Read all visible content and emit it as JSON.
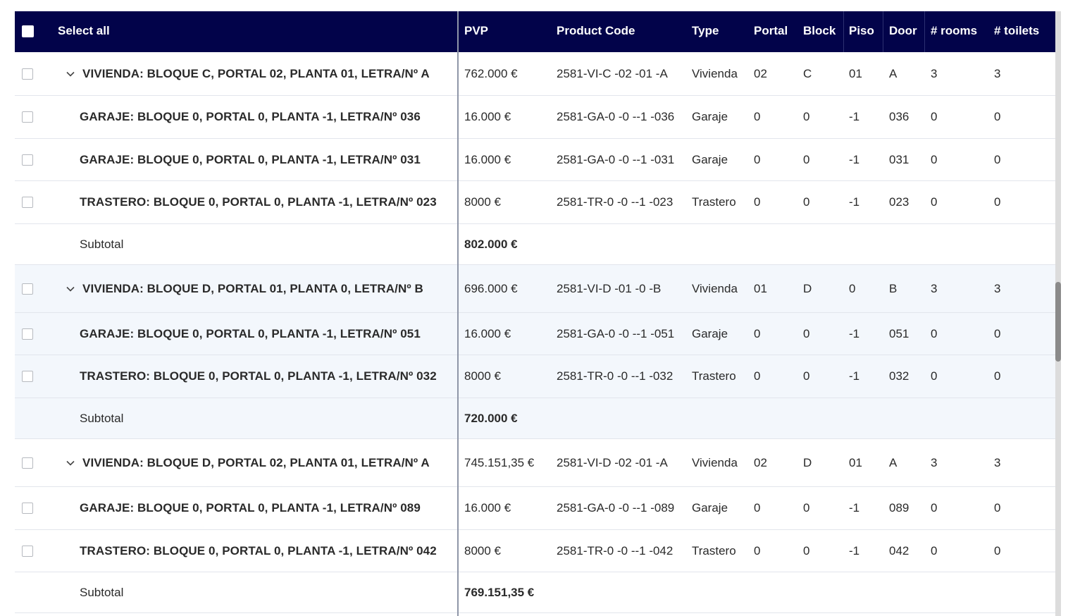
{
  "header": {
    "select_all": "Select all",
    "columns": {
      "pvp": "PVP",
      "code": "Product Code",
      "type": "Type",
      "portal": "Portal",
      "block": "Block",
      "piso": "Piso",
      "door": "Door",
      "rooms": "# rooms",
      "toilets": "# toilets"
    }
  },
  "colors": {
    "header_bg": "#02034a",
    "name_link": "#1aa9c4",
    "alt_row": "#f3f7fc"
  },
  "groups": [
    {
      "rows": [
        {
          "name": "VIVIENDA: BLOQUE C, PORTAL 02, PLANTA 01, LETRA/Nº A",
          "pvp": "762.000 €",
          "code": "2581-VI-C -02 -01 -A",
          "type": "Vivienda",
          "portal": "02",
          "block": "C",
          "piso": "01",
          "door": "A",
          "rooms": "3",
          "toilets": "3"
        },
        {
          "name": "GARAJE: BLOQUE 0, PORTAL 0, PLANTA -1, LETRA/Nº 036",
          "pvp": "16.000 €",
          "code": "2581-GA-0 -0 --1 -036",
          "type": "Garaje",
          "portal": "0",
          "block": "0",
          "piso": "-1",
          "door": "036",
          "rooms": "0",
          "toilets": "0"
        },
        {
          "name": "GARAJE: BLOQUE 0, PORTAL 0, PLANTA -1, LETRA/Nº 031",
          "pvp": "16.000 €",
          "code": "2581-GA-0 -0 --1 -031",
          "type": "Garaje",
          "portal": "0",
          "block": "0",
          "piso": "-1",
          "door": "031",
          "rooms": "0",
          "toilets": "0"
        },
        {
          "name": "TRASTERO: BLOQUE 0, PORTAL 0, PLANTA -1, LETRA/Nº 023",
          "pvp": "8000 €",
          "code": "2581-TR-0 -0 --1 -023",
          "type": "Trastero",
          "portal": "0",
          "block": "0",
          "piso": "-1",
          "door": "023",
          "rooms": "0",
          "toilets": "0"
        }
      ],
      "subtotal_label": "Subtotal",
      "subtotal_value": "802.000 €"
    },
    {
      "rows": [
        {
          "name": "VIVIENDA: BLOQUE D, PORTAL 01, PLANTA 0, LETRA/Nº B",
          "pvp": "696.000 €",
          "code": "2581-VI-D -01 -0 -B",
          "type": "Vivienda",
          "portal": "01",
          "block": "D",
          "piso": "0",
          "door": "B",
          "rooms": "3",
          "toilets": "3"
        },
        {
          "name": "GARAJE: BLOQUE 0, PORTAL 0, PLANTA -1, LETRA/Nº 051",
          "pvp": "16.000 €",
          "code": "2581-GA-0 -0 --1 -051",
          "type": "Garaje",
          "portal": "0",
          "block": "0",
          "piso": "-1",
          "door": "051",
          "rooms": "0",
          "toilets": "0"
        },
        {
          "name": "TRASTERO: BLOQUE 0, PORTAL 0, PLANTA -1, LETRA/Nº 032",
          "pvp": "8000 €",
          "code": "2581-TR-0 -0 --1 -032",
          "type": "Trastero",
          "portal": "0",
          "block": "0",
          "piso": "-1",
          "door": "032",
          "rooms": "0",
          "toilets": "0"
        }
      ],
      "subtotal_label": "Subtotal",
      "subtotal_value": "720.000 €"
    },
    {
      "rows": [
        {
          "name": "VIVIENDA: BLOQUE D, PORTAL 02, PLANTA 01, LETRA/Nº A",
          "pvp": "745.151,35 €",
          "code": "2581-VI-D -02 -01 -A",
          "type": "Vivienda",
          "portal": "02",
          "block": "D",
          "piso": "01",
          "door": "A",
          "rooms": "3",
          "toilets": "3"
        },
        {
          "name": "GARAJE: BLOQUE 0, PORTAL 0, PLANTA -1, LETRA/Nº 089",
          "pvp": "16.000 €",
          "code": "2581-GA-0 -0 --1 -089",
          "type": "Garaje",
          "portal": "0",
          "block": "0",
          "piso": "-1",
          "door": "089",
          "rooms": "0",
          "toilets": "0"
        },
        {
          "name": "TRASTERO: BLOQUE 0, PORTAL 0, PLANTA -1, LETRA/Nº 042",
          "pvp": "8000 €",
          "code": "2581-TR-0 -0 --1 -042",
          "type": "Trastero",
          "portal": "0",
          "block": "0",
          "piso": "-1",
          "door": "042",
          "rooms": "0",
          "toilets": "0"
        }
      ],
      "subtotal_label": "Subtotal",
      "subtotal_value": "769.151,35 €"
    }
  ]
}
